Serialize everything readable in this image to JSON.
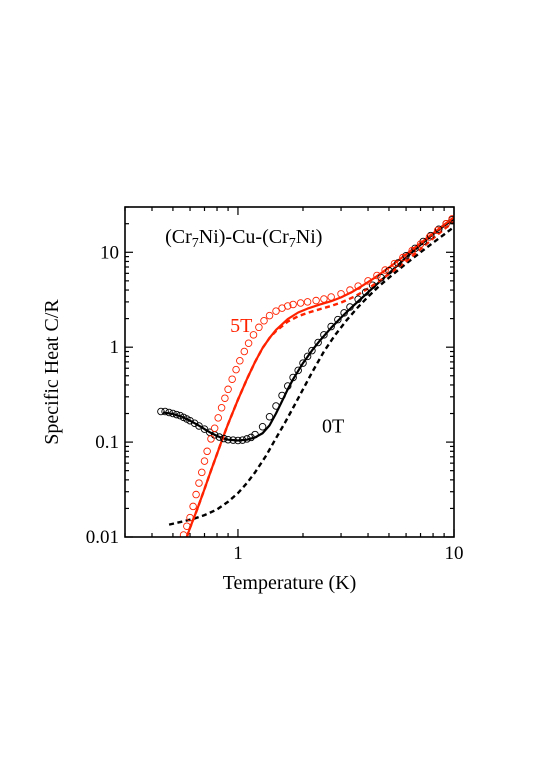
{
  "chart_data": {
    "type": "scatter",
    "title": "",
    "xlabel": "Temperature (K)",
    "ylabel": "Specific Heat C/R",
    "x_scale": "log",
    "y_scale": "log",
    "xlim": [
      0.3,
      10
    ],
    "ylim": [
      0.01,
      30
    ],
    "x_ticks": [
      {
        "value": 1,
        "label": "1"
      },
      {
        "value": 10,
        "label": "10"
      }
    ],
    "y_ticks": [
      {
        "value": 0.01,
        "label": "0.01"
      },
      {
        "value": 0.1,
        "label": "0.1"
      },
      {
        "value": 1,
        "label": "1"
      },
      {
        "value": 10,
        "label": "10"
      }
    ],
    "grid": false,
    "annotations": [
      {
        "text": "(Cr7Ni)-Cu-(Cr7Ni)",
        "parts": [
          {
            "t": "(Cr",
            "sub": false
          },
          {
            "t": "7",
            "sub": true
          },
          {
            "t": "Ni)-Cu-(Cr",
            "sub": false
          },
          {
            "t": "7",
            "sub": true
          },
          {
            "t": "Ni)",
            "sub": false
          }
        ],
        "x": 0.46,
        "y": 12.5,
        "color": "#000000"
      },
      {
        "text": "5T",
        "x": 0.92,
        "y": 1.45,
        "color": "#ff2200"
      },
      {
        "text": "0T",
        "x": 2.45,
        "y": 0.126,
        "color": "#000000"
      }
    ],
    "series": [
      {
        "field": "0T",
        "kind": "markers",
        "marker": "open-circle",
        "color": "#000000",
        "x": [
          0.44,
          0.46,
          0.48,
          0.5,
          0.52,
          0.54,
          0.56,
          0.58,
          0.6,
          0.63,
          0.66,
          0.7,
          0.74,
          0.78,
          0.82,
          0.86,
          0.9,
          0.95,
          1.0,
          1.05,
          1.1,
          1.15,
          1.2,
          1.3,
          1.4,
          1.5,
          1.6,
          1.7,
          1.8,
          1.9,
          2.0,
          2.1,
          2.2,
          2.35,
          2.5,
          2.7,
          2.9,
          3.1,
          3.3,
          3.6,
          3.9,
          4.2,
          4.6,
          5.0,
          5.5,
          6.0,
          6.6,
          7.2,
          7.8,
          8.5,
          9.2,
          9.8
        ],
        "y": [
          0.21,
          0.21,
          0.205,
          0.2,
          0.195,
          0.19,
          0.182,
          0.175,
          0.168,
          0.158,
          0.148,
          0.137,
          0.127,
          0.119,
          0.113,
          0.109,
          0.106,
          0.105,
          0.104,
          0.105,
          0.108,
          0.112,
          0.12,
          0.145,
          0.185,
          0.24,
          0.31,
          0.39,
          0.48,
          0.57,
          0.68,
          0.8,
          0.92,
          1.12,
          1.35,
          1.65,
          1.95,
          2.3,
          2.65,
          3.2,
          3.8,
          4.5,
          5.4,
          6.4,
          7.7,
          9.2,
          11.0,
          13.0,
          15.0,
          17.5,
          20.0,
          22.0
        ]
      },
      {
        "field": "5T",
        "kind": "markers",
        "marker": "open-circle",
        "color": "#ff2200",
        "x": [
          0.56,
          0.58,
          0.6,
          0.62,
          0.64,
          0.66,
          0.68,
          0.7,
          0.72,
          0.75,
          0.78,
          0.81,
          0.84,
          0.87,
          0.9,
          0.94,
          0.98,
          1.02,
          1.07,
          1.12,
          1.18,
          1.25,
          1.32,
          1.4,
          1.5,
          1.6,
          1.7,
          1.8,
          1.95,
          2.1,
          2.3,
          2.5,
          2.7,
          3.0,
          3.3,
          3.6,
          4.0,
          4.4,
          4.8,
          5.3,
          5.8,
          6.4,
          7.0,
          7.7,
          8.4,
          9.2,
          9.8
        ],
        "y": [
          0.0105,
          0.013,
          0.016,
          0.021,
          0.028,
          0.037,
          0.048,
          0.063,
          0.08,
          0.108,
          0.14,
          0.18,
          0.23,
          0.29,
          0.36,
          0.46,
          0.58,
          0.72,
          0.9,
          1.1,
          1.35,
          1.62,
          1.9,
          2.15,
          2.4,
          2.58,
          2.72,
          2.82,
          2.92,
          3.0,
          3.1,
          3.22,
          3.38,
          3.65,
          4.0,
          4.4,
          5.0,
          5.7,
          6.5,
          7.6,
          8.8,
          10.4,
          12.2,
          14.5,
          17.0,
          20.0,
          22.5
        ]
      },
      {
        "field": "0T",
        "kind": "fit",
        "line": "solid",
        "color": "#000000",
        "x": [
          0.45,
          0.5,
          0.55,
          0.6,
          0.65,
          0.7,
          0.75,
          0.8,
          0.85,
          0.9,
          1.0,
          1.1,
          1.2,
          1.3,
          1.4,
          1.5,
          1.6,
          1.7,
          1.8,
          2.0,
          2.2,
          2.4,
          2.7,
          3.0,
          3.4,
          3.8,
          4.3,
          5.0,
          6.0,
          7.0,
          8.0,
          9.0,
          10.0
        ],
        "y": [
          0.205,
          0.198,
          0.185,
          0.168,
          0.152,
          0.137,
          0.125,
          0.116,
          0.11,
          0.106,
          0.104,
          0.106,
          0.112,
          0.124,
          0.15,
          0.2,
          0.27,
          0.36,
          0.46,
          0.68,
          0.92,
          1.18,
          1.6,
          2.05,
          2.7,
          3.4,
          4.4,
          6.0,
          8.8,
          12.0,
          15.5,
          19.0,
          22.5
        ]
      },
      {
        "field": "5T",
        "kind": "fit",
        "line": "solid",
        "color": "#ff2200",
        "x": [
          0.58,
          0.6,
          0.65,
          0.7,
          0.75,
          0.8,
          0.85,
          0.9,
          0.95,
          1.0,
          1.1,
          1.2,
          1.3,
          1.4,
          1.5,
          1.7,
          1.9,
          2.1,
          2.4,
          2.7,
          3.0,
          3.4,
          3.8,
          4.3,
          5.0,
          6.0,
          7.0,
          8.0,
          9.0,
          10.0
        ],
        "y": [
          0.01,
          0.0125,
          0.02,
          0.032,
          0.05,
          0.075,
          0.11,
          0.155,
          0.21,
          0.28,
          0.46,
          0.7,
          0.98,
          1.25,
          1.52,
          1.98,
          2.32,
          2.55,
          2.82,
          3.05,
          3.35,
          3.85,
          4.5,
          5.4,
          6.9,
          9.5,
          12.5,
          15.8,
          19.5,
          23.5
        ]
      },
      {
        "field": "0T",
        "kind": "model",
        "line": "dashed",
        "color": "#000000",
        "x": [
          0.48,
          0.55,
          0.62,
          0.7,
          0.8,
          0.9,
          1.0,
          1.1,
          1.2,
          1.35,
          1.5,
          1.65,
          1.8,
          2.0,
          2.2,
          2.5,
          2.8,
          3.2,
          3.6,
          4.0,
          4.5,
          5.0,
          6.0,
          7.0,
          8.0,
          9.0,
          10.0
        ],
        "y": [
          0.0135,
          0.0145,
          0.0155,
          0.017,
          0.0195,
          0.0235,
          0.029,
          0.037,
          0.048,
          0.072,
          0.11,
          0.16,
          0.23,
          0.36,
          0.54,
          0.9,
          1.32,
          1.95,
          2.65,
          3.4,
          4.4,
          5.4,
          7.6,
          10.0,
          12.6,
          15.4,
          18.5
        ]
      },
      {
        "field": "5T",
        "kind": "model",
        "line": "dashed",
        "color": "#ff2200",
        "x": [
          0.58,
          0.6,
          0.65,
          0.7,
          0.75,
          0.8,
          0.85,
          0.9,
          0.95,
          1.0,
          1.1,
          1.2,
          1.3,
          1.4,
          1.5,
          1.7,
          1.9,
          2.1,
          2.4,
          2.7,
          3.0,
          3.5,
          4.0,
          4.5,
          5.0,
          6.0,
          7.0,
          8.0,
          9.0,
          10.0
        ],
        "y": [
          0.01,
          0.0125,
          0.02,
          0.032,
          0.05,
          0.075,
          0.11,
          0.155,
          0.21,
          0.28,
          0.46,
          0.7,
          0.98,
          1.25,
          1.48,
          1.86,
          2.12,
          2.3,
          2.52,
          2.72,
          2.95,
          3.45,
          4.15,
          4.95,
          5.9,
          8.0,
          10.8,
          14.0,
          17.5,
          21.0
        ]
      }
    ]
  }
}
